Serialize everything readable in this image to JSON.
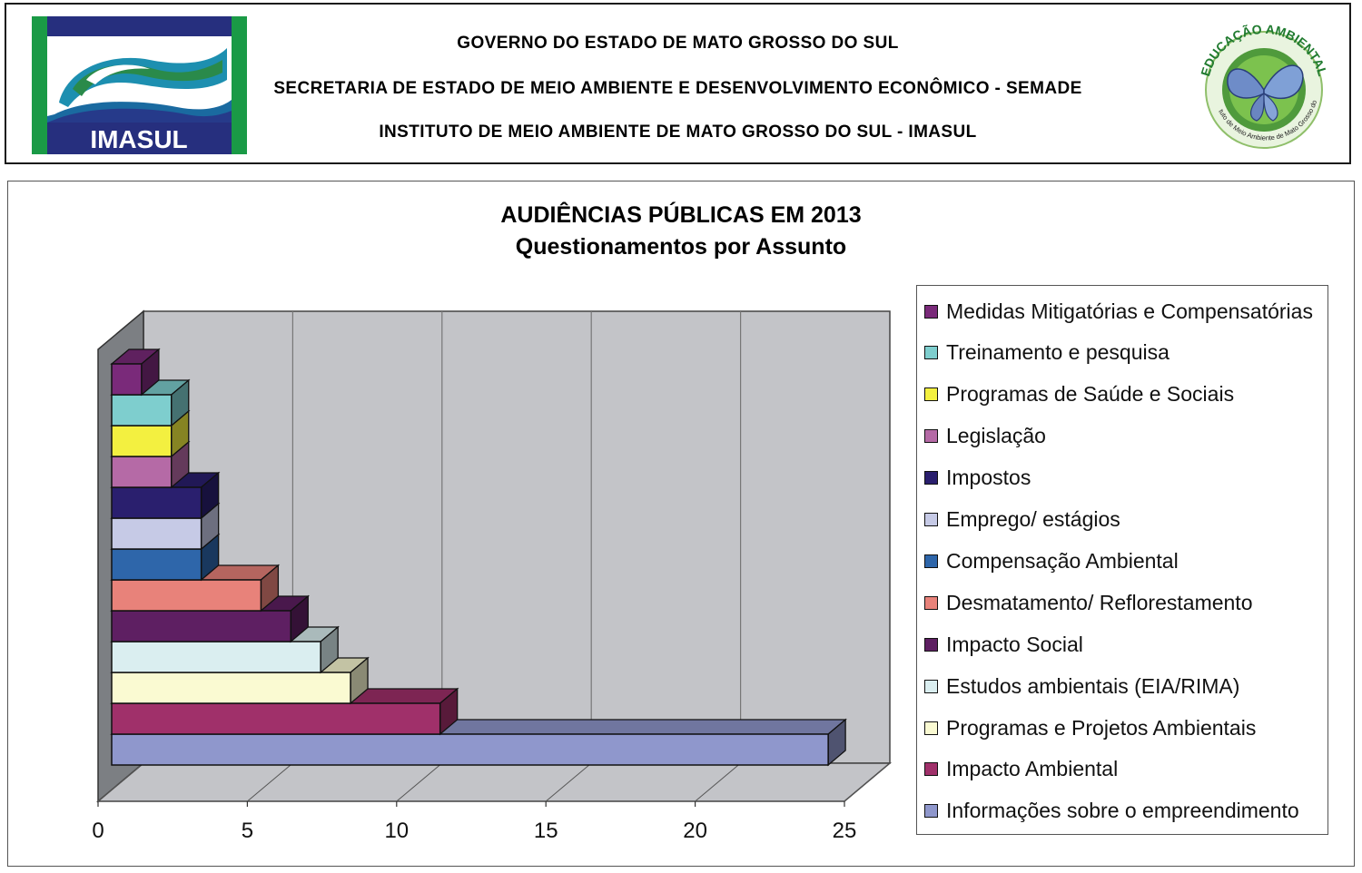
{
  "header": {
    "line1": "GOVERNO DO ESTADO DE MATO GROSSO DO SUL",
    "line2": "SECRETARIA DE ESTADO DE MEIO AMBIENTE E DESENVOLVIMENTO ECONÔMICO - SEMADE",
    "line3": "INSTITUTO DE MEIO AMBIENTE DE MATO GROSSO DO SUL - IMASUL",
    "logo_left_text": "IMASUL",
    "logo_right_text_top": "EDUCAÇÃO AMBIENTAL",
    "logo_right_text_bottom": "Instituto de Meio Ambiente de Mato Grosso do Sul"
  },
  "chart_data": {
    "type": "bar",
    "orientation": "horizontal",
    "style": "3d",
    "title": "AUDIÊNCIAS PÚBLICAS EM 2013",
    "subtitle": "Questionamentos por Assunto",
    "xlim": [
      0,
      25
    ],
    "xticks": [
      "0",
      "5",
      "10",
      "15",
      "20",
      "25"
    ],
    "grid": true,
    "legend_position": "right",
    "categories": [
      {
        "name": "Medidas Mitigatórias e Compensatórias",
        "value": 1,
        "color": "#7a2a7a"
      },
      {
        "name": "Treinamento  e pesquisa",
        "value": 2,
        "color": "#7ecece"
      },
      {
        "name": "Programas de Saúde e Sociais",
        "value": 2,
        "color": "#f3f040"
      },
      {
        "name": "Legislação",
        "value": 2,
        "color": "#b56aa6"
      },
      {
        "name": "Impostos",
        "value": 3,
        "color": "#2a1f6e"
      },
      {
        "name": "Emprego/ estágios",
        "value": 3,
        "color": "#c6cae6"
      },
      {
        "name": "Compensação Ambiental",
        "value": 3,
        "color": "#2e66aa"
      },
      {
        "name": "Desmatamento/ Reflorestamento",
        "value": 5,
        "color": "#e8827a"
      },
      {
        "name": "Impacto Social",
        "value": 6,
        "color": "#5e1f62"
      },
      {
        "name": "Estudos ambientais (EIA/RIMA)",
        "value": 7,
        "color": "#daeef0"
      },
      {
        "name": "Programas e Projetos Ambientais",
        "value": 8,
        "color": "#fafad2"
      },
      {
        "name": "Impacto Ambiental",
        "value": 11,
        "color": "#a0306a"
      },
      {
        "name": "Informações sobre o empreendimento",
        "value": 24,
        "color": "#8f97cc"
      }
    ]
  }
}
